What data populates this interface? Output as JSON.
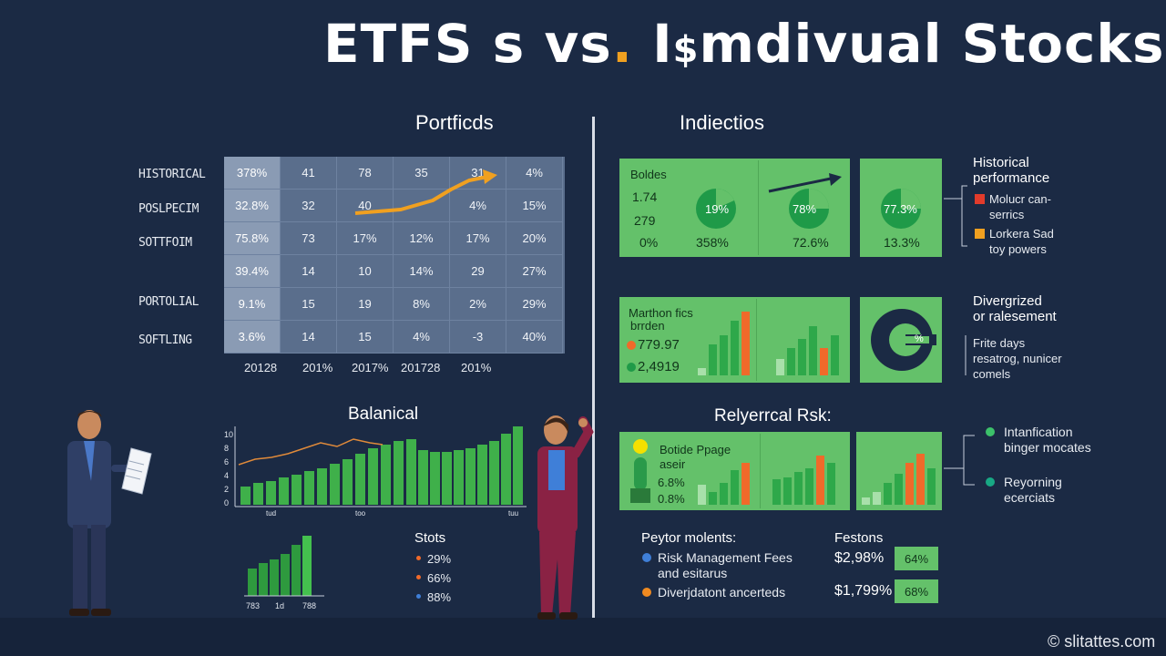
{
  "header": {
    "title_part1": "ETFS s vs",
    "title_dot": ".",
    "title_part2": " I",
    "title_glyph": "$",
    "title_part3": "mdivual Stocks"
  },
  "left": {
    "section_title": "Portficds",
    "rows": [
      {
        "label": "HISTORICAL",
        "cells": [
          "378%",
          "41",
          "78",
          "35",
          "31",
          "4%"
        ]
      },
      {
        "label": "POSLPECIM",
        "cells": [
          "32.8%",
          "32",
          "40",
          "",
          "4%",
          "15%"
        ]
      },
      {
        "label": "SOTTFOIM",
        "cells": [
          "75.8%",
          "73",
          "17%",
          "12%",
          "17%",
          "20%"
        ]
      },
      {
        "label": "",
        "cells": [
          "39.4%",
          "14",
          "10",
          "14%",
          "29",
          "27%"
        ]
      },
      {
        "label": "PORTOLIAL",
        "cells": [
          "9.1%",
          "15",
          "19",
          "8%",
          "2%",
          "29%"
        ]
      },
      {
        "label": "SOFTLING",
        "cells": [
          "3.6%",
          "14",
          "15",
          "4%",
          "-3",
          "40%"
        ]
      }
    ],
    "years": [
      "20128",
      "201%",
      "2017%",
      "201728",
      "201%"
    ],
    "balance": {
      "title": "Balanical",
      "yticks": [
        "10",
        "8",
        "6",
        "4",
        "2",
        "0"
      ],
      "xticks": [
        "tud",
        "too",
        "tuu"
      ]
    },
    "mini_chart": {
      "xticks": [
        "783",
        "1d",
        "788"
      ]
    },
    "stats": {
      "title": "Stots",
      "items": [
        {
          "text": "29%",
          "color": "#f06a2a"
        },
        {
          "text": "66%",
          "color": "#f06a2a"
        },
        {
          "text": "88%",
          "color": "#3f7fd8"
        }
      ]
    }
  },
  "right": {
    "section_title": "Indiectios",
    "panel1": {
      "label": "Boldes",
      "v1": "1.74",
      "v2": "279",
      "v3": "0%",
      "pie1": "19%",
      "v4": "358%",
      "pie2": "78%",
      "v5": "72.6%"
    },
    "panel2": {
      "pie": "77.3%",
      "v": "13.3%"
    },
    "hist": {
      "title_line1": "Historical",
      "title_line2": "performance",
      "items": [
        {
          "line1": "Molucr can-",
          "line2": "serrics",
          "color": "#e23b2b"
        },
        {
          "line1": "Lorkera Sad",
          "line2": "toy powers",
          "color": "#f0a020"
        }
      ]
    },
    "panel3": {
      "label1": "Marthon fics",
      "label2": "brrden",
      "v1": "779.97",
      "v2": "2,4919"
    },
    "panel4": {
      "text": "%"
    },
    "diver": {
      "title_line1": "Divergrized",
      "title_line2": "or ralesement",
      "lines": [
        "Frite days",
        "resatrog, nunicer",
        "comels"
      ]
    },
    "risk": {
      "title": "Relyerrcal Rsk:"
    },
    "panel5": {
      "label1": "Botide Ppage",
      "label2": "aseir",
      "v1": "6.8%",
      "v2": "0.8%"
    },
    "legend": [
      {
        "line1": "Intanfication",
        "line2": "binger mocates",
        "color": "#3cc16a"
      },
      {
        "line1": "Reyorning",
        "line2": "ecerciats",
        "color": "#18a884"
      }
    ],
    "bottom": {
      "left_title": "Peytor molents:",
      "left_items": [
        {
          "line1": "Risk Management Fees",
          "line2": "and esitarus",
          "color": "#3f7fd8"
        },
        {
          "line1": "Diverjdatont ancerteds",
          "line2": "",
          "color": "#f08a20"
        }
      ],
      "right_title": "Festons",
      "right_items": [
        {
          "value": "$2,98%",
          "badge": "64%"
        },
        {
          "value": "$1,799%",
          "badge": "68%"
        }
      ]
    }
  },
  "footer": {
    "watermark": "© slitattes.com"
  }
}
